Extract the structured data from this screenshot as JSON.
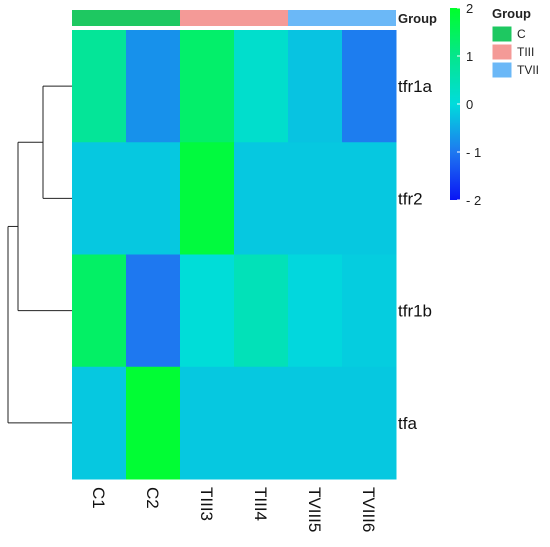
{
  "chart_data": {
    "type": "heatmap",
    "title": "",
    "xlabel": "",
    "ylabel": "",
    "columns": [
      "C1",
      "C2",
      "TIII3",
      "TIII4",
      "TVIII5",
      "TVIII6"
    ],
    "rows": [
      "tfr1a",
      "tfr2",
      "tfr1b",
      "tfa"
    ],
    "values": [
      [
        0.85,
        -0.75,
        1.35,
        0.2,
        -0.25,
        -0.95
      ],
      [
        -0.2,
        -0.2,
        1.8,
        -0.2,
        -0.2,
        -0.2
      ],
      [
        1.4,
        -1.0,
        0.05,
        0.45,
        -0.05,
        -0.15
      ],
      [
        -0.2,
        1.9,
        -0.2,
        -0.2,
        -0.2,
        -0.2
      ]
    ],
    "column_groups": [
      "C",
      "C",
      "TIII",
      "TIII",
      "TVII",
      "TVII"
    ],
    "group_annotation_label": "Group",
    "legend": {
      "title": "Group",
      "items": [
        {
          "label": "C",
          "color": "#1ec861"
        },
        {
          "label": "TIII",
          "color": "#f49a97"
        },
        {
          "label": "TVII",
          "color": "#6bb8f7"
        }
      ]
    },
    "colorbar": {
      "range": [
        -2,
        2
      ],
      "ticks": [
        {
          "value": 2,
          "label": "2"
        },
        {
          "value": 1,
          "label": "1"
        },
        {
          "value": 0,
          "label": "0"
        },
        {
          "value": -1,
          "label": "- 1"
        },
        {
          "value": -2,
          "label": "- 2"
        }
      ],
      "stops": [
        {
          "value": -2,
          "color": "#0a14f5"
        },
        {
          "value": -1,
          "color": "#1e78f0"
        },
        {
          "value": 0,
          "color": "#00dcdc"
        },
        {
          "value": 1,
          "color": "#05e68c"
        },
        {
          "value": 2,
          "color": "#00ff2a"
        }
      ]
    },
    "row_dendrogram": "((tfr1a, tfr2), tfr1b), tfa"
  }
}
